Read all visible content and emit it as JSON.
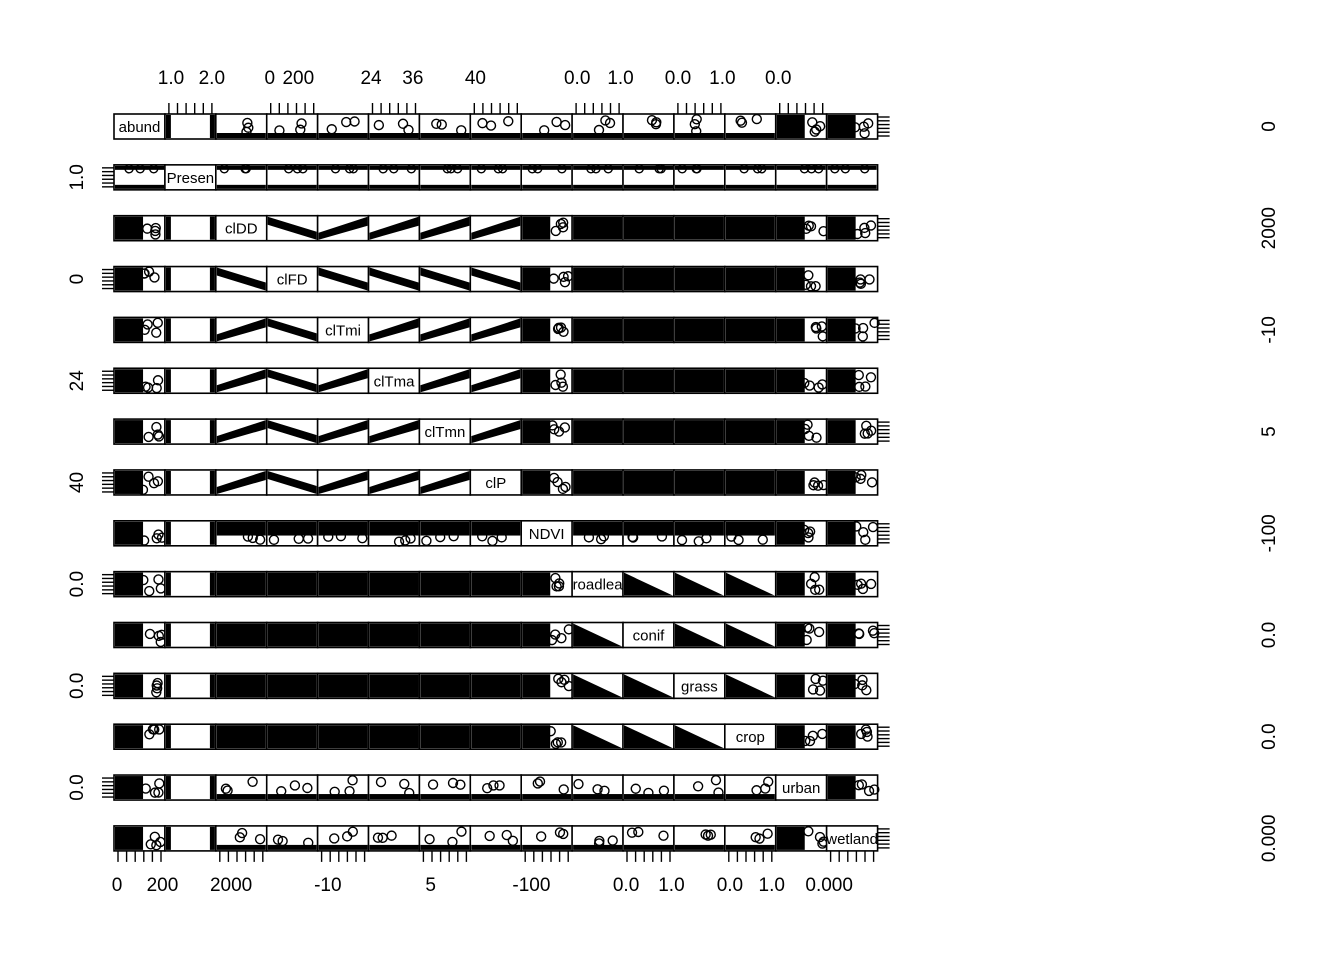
{
  "chart_data": {
    "type": "scatter",
    "subtype": "scatterplot-matrix",
    "title": "",
    "variables": [
      "abund",
      "Presen",
      "clDD",
      "clFD",
      "clTmi",
      "clTma",
      "clTmn",
      "clP",
      "NDVI",
      "roadlea",
      "conif",
      "grass",
      "crop",
      "urban",
      "wetland"
    ],
    "tick_labels": {
      "top": [
        {
          "col": 1,
          "labels": [
            "1.0",
            "2.0"
          ]
        },
        {
          "col": 3,
          "labels": [
            "0",
            "200"
          ]
        },
        {
          "col": 5,
          "labels": [
            "24",
            "36"
          ]
        },
        {
          "col": 7,
          "labels": [
            "40"
          ]
        },
        {
          "col": 9,
          "labels": [
            "0.0",
            "1.0"
          ]
        },
        {
          "col": 11,
          "labels": [
            "0.0",
            "1.0"
          ]
        },
        {
          "col": 13,
          "labels": [
            "0.0"
          ]
        }
      ],
      "bottom": [
        {
          "col": 0,
          "labels": [
            "0",
            "200"
          ]
        },
        {
          "col": 2,
          "labels": [
            "2000"
          ]
        },
        {
          "col": 4,
          "labels": [
            "-10"
          ]
        },
        {
          "col": 6,
          "labels": [
            "5"
          ]
        },
        {
          "col": 8,
          "labels": [
            "-100"
          ]
        },
        {
          "col": 10,
          "labels": [
            "0.0",
            "1.0"
          ]
        },
        {
          "col": 12,
          "labels": [
            "0.0",
            "1.0"
          ]
        },
        {
          "col": 14,
          "labels": [
            "0.000"
          ]
        }
      ],
      "left": [
        {
          "row": 1,
          "labels": [
            "1.0"
          ]
        },
        {
          "row": 3,
          "labels": [
            "0"
          ]
        },
        {
          "row": 5,
          "labels": [
            "24"
          ]
        },
        {
          "row": 7,
          "labels": [
            "40"
          ]
        },
        {
          "row": 9,
          "labels": [
            "0.0"
          ]
        },
        {
          "row": 11,
          "labels": [
            "0.0"
          ]
        },
        {
          "row": 13,
          "labels": [
            "0.0"
          ]
        }
      ],
      "right": [
        {
          "row": 0,
          "labels": [
            "0"
          ]
        },
        {
          "row": 2,
          "labels": [
            "2000"
          ]
        },
        {
          "row": 4,
          "labels": [
            "-10"
          ]
        },
        {
          "row": 6,
          "labels": [
            "5"
          ]
        },
        {
          "row": 8,
          "labels": [
            "-100"
          ]
        },
        {
          "row": 10,
          "labels": [
            "0.0"
          ]
        },
        {
          "row": 12,
          "labels": [
            "0.0"
          ]
        },
        {
          "row": 14,
          "labels": [
            "0.000"
          ]
        }
      ]
    },
    "grid": false,
    "legend": "none",
    "point_shape": "open circle",
    "colors": {
      "ink": "#000000",
      "background": "#ffffff"
    }
  }
}
